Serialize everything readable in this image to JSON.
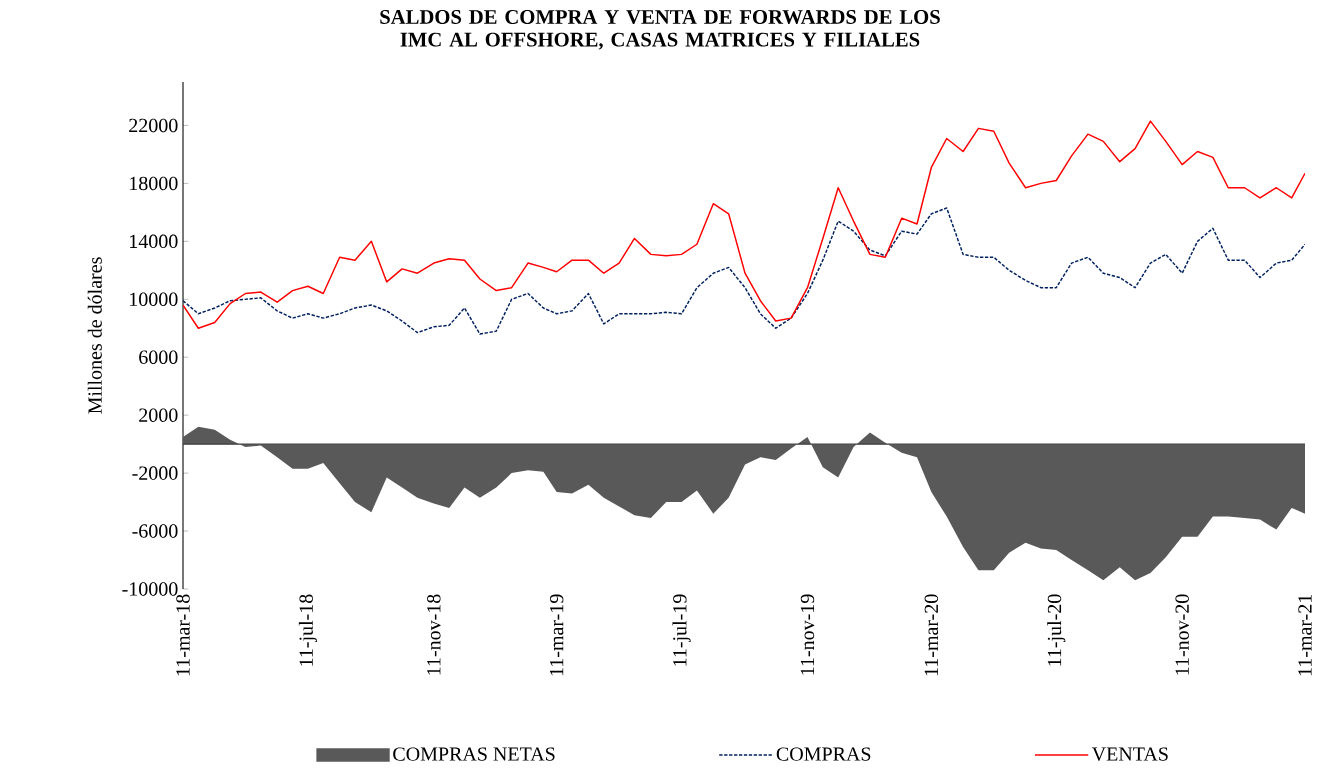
{
  "chart_data": {
    "type": "line",
    "title": "SALDOS DE COMPRA Y VENTA DE FORWARDS DE LOS IMC AL OFFSHORE, CASAS MATRICES Y FILIALES",
    "ylabel": "Millones de dólares",
    "x": [
      "2018-03-11",
      "2018-03-26",
      "2018-04-11",
      "2018-04-26",
      "2018-05-11",
      "2018-05-26",
      "2018-06-11",
      "2018-06-26",
      "2018-07-11",
      "2018-07-26",
      "2018-08-11",
      "2018-08-26",
      "2018-09-11",
      "2018-09-26",
      "2018-10-11",
      "2018-10-26",
      "2018-11-11",
      "2018-11-26",
      "2018-12-11",
      "2018-12-26",
      "2019-01-11",
      "2019-01-26",
      "2019-02-11",
      "2019-02-26",
      "2019-03-11",
      "2019-03-26",
      "2019-04-11",
      "2019-04-26",
      "2019-05-11",
      "2019-05-26",
      "2019-06-11",
      "2019-06-26",
      "2019-07-11",
      "2019-07-26",
      "2019-08-11",
      "2019-08-26",
      "2019-09-11",
      "2019-09-26",
      "2019-10-11",
      "2019-10-26",
      "2019-11-11",
      "2019-11-26",
      "2019-12-11",
      "2019-12-26",
      "2020-01-11",
      "2020-01-26",
      "2020-02-11",
      "2020-02-26",
      "2020-03-11",
      "2020-03-26",
      "2020-04-11",
      "2020-04-26",
      "2020-05-11",
      "2020-05-26",
      "2020-06-11",
      "2020-06-26",
      "2020-07-11",
      "2020-07-26",
      "2020-08-11",
      "2020-08-26",
      "2020-09-11",
      "2020-09-26",
      "2020-10-11",
      "2020-10-26",
      "2020-11-11",
      "2020-11-26",
      "2020-12-11",
      "2020-12-26",
      "2021-01-11",
      "2021-01-26",
      "2021-02-11",
      "2021-02-26",
      "2021-03-11"
    ],
    "xlim": [
      "2018-03-11",
      "2021-03-11"
    ],
    "xticks": [
      {
        "value": "2018-03-11",
        "label": "11-mar-18"
      },
      {
        "value": "2018-07-11",
        "label": "11-jul-18"
      },
      {
        "value": "2018-11-11",
        "label": "11-nov-18"
      },
      {
        "value": "2019-03-11",
        "label": "11-mar-19"
      },
      {
        "value": "2019-07-11",
        "label": "11-jul-19"
      },
      {
        "value": "2019-11-11",
        "label": "11-nov-19"
      },
      {
        "value": "2020-03-11",
        "label": "11-mar-20"
      },
      {
        "value": "2020-07-11",
        "label": "11-jul-20"
      },
      {
        "value": "2020-11-11",
        "label": "11-nov-20"
      },
      {
        "value": "2021-03-11",
        "label": "11-mar-21"
      }
    ],
    "ylim": [
      -10000,
      25000
    ],
    "yticks": [
      -10000,
      -6000,
      -2000,
      2000,
      6000,
      10000,
      14000,
      18000,
      22000
    ],
    "legend": "bottom",
    "series": [
      {
        "name": "COMPRAS NETAS",
        "type": "area",
        "color": "#595959",
        "values": [
          500,
          1200,
          1000,
          300,
          -200,
          -100,
          -900,
          -1700,
          -1700,
          -1300,
          -2700,
          -4000,
          -4700,
          -2300,
          -3000,
          -3700,
          -4100,
          -4400,
          -3000,
          -3700,
          -3000,
          -2000,
          -1800,
          -1900,
          -3300,
          -3400,
          -2800,
          -3700,
          -4300,
          -4900,
          -5100,
          -4000,
          -4000,
          -3200,
          -4800,
          -3700,
          -1400,
          -900,
          -1100,
          -300,
          500,
          -1600,
          -2300,
          -200,
          800,
          100,
          -600,
          -900,
          -3300,
          -5000,
          -7100,
          -8700,
          -8700,
          -7500,
          -6800,
          -7200,
          -7300,
          -8000,
          -8700,
          -9400,
          -8500,
          -9400,
          -8900,
          -7800,
          -6400,
          -6400,
          -5000,
          -5000,
          -5100,
          -5200,
          -5900,
          -4400,
          -4800
        ]
      },
      {
        "name": "COMPRAS",
        "line_style": "dashed",
        "color": "#002060",
        "values": [
          9900,
          9000,
          9400,
          9900,
          10000,
          10100,
          9200,
          8700,
          9000,
          8700,
          9000,
          9400,
          9600,
          9200,
          8500,
          7700,
          8100,
          8200,
          9400,
          7600,
          7800,
          10000,
          10400,
          9400,
          9000,
          9200,
          10400,
          8300,
          9000,
          9000,
          9000,
          9100,
          9000,
          10800,
          11800,
          12200,
          10800,
          9000,
          8000,
          8700,
          10400,
          12700,
          15400,
          14700,
          13400,
          13000,
          14700,
          14500,
          15900,
          16300,
          13100,
          12900,
          12900,
          12000,
          11300,
          10800,
          10800,
          12500,
          12900,
          11800,
          11500,
          10800,
          12500,
          13100,
          11800,
          14000,
          14900,
          12700,
          12700,
          11500,
          12500,
          12700,
          13800
        ]
      },
      {
        "name": "VENTAS",
        "line_style": "solid",
        "color": "#ff0000",
        "values": [
          9600,
          8000,
          8400,
          9700,
          10400,
          10500,
          9800,
          10600,
          10900,
          10400,
          12900,
          12700,
          14000,
          11200,
          12100,
          11800,
          12500,
          12800,
          12700,
          11400,
          10600,
          10800,
          12500,
          12200,
          11900,
          12700,
          12700,
          11800,
          12500,
          14200,
          13100,
          13000,
          13100,
          13800,
          16600,
          15900,
          11800,
          9900,
          8500,
          8700,
          10800,
          14200,
          17700,
          15400,
          13100,
          12900,
          15600,
          15200,
          19100,
          21100,
          20200,
          21800,
          21600,
          19400,
          17700,
          18000,
          18200,
          19900,
          21400,
          20900,
          19500,
          20400,
          22300,
          20900,
          19300,
          20200,
          19800,
          17700,
          17700,
          17000,
          17700,
          17000,
          18700
        ]
      }
    ]
  }
}
